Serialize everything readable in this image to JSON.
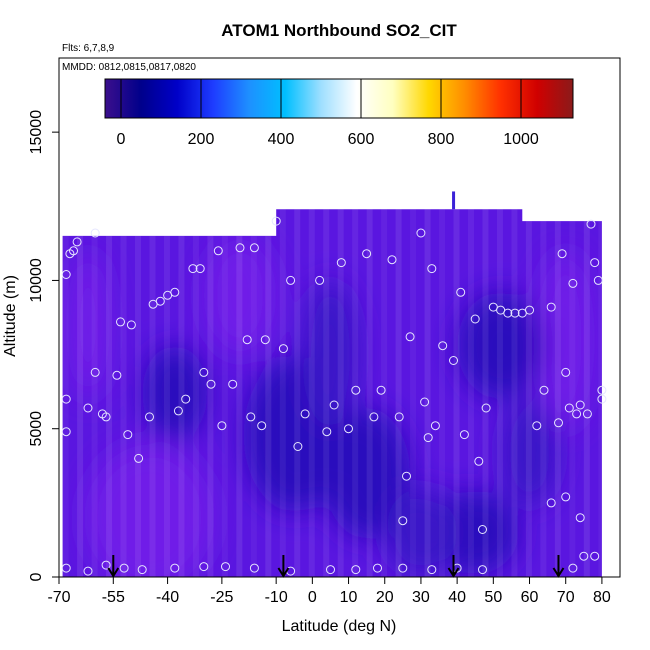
{
  "chart_data": {
    "type": "heatmap",
    "title": "ATOM1 Northbound SO2_CIT",
    "flights_label": "Flts: 6,7,8,9",
    "mmdd_label": "MMDD: 0812,0815,0817,0820",
    "xlabel": "Latitude (deg N)",
    "ylabel": "Altitude (m)",
    "xlim": [
      -70,
      85
    ],
    "ylim": [
      0,
      17500
    ],
    "x_ticks": [
      -70,
      -55,
      -40,
      -25,
      -10,
      0,
      10,
      20,
      30,
      40,
      50,
      60,
      70,
      80
    ],
    "y_ticks": [
      0,
      5000,
      10000,
      15000
    ],
    "colorbar": {
      "min": -40,
      "max": 1130,
      "ticks": [
        0,
        200,
        400,
        600,
        800,
        1000
      ],
      "colors": [
        "#3b0f8c",
        "#00008b",
        "#0000c8",
        "#1e3cff",
        "#1e90ff",
        "#00bfff",
        "#9fdfff",
        "#ffffff",
        "#ffffc0",
        "#ffd700",
        "#ff8c00",
        "#ff3000",
        "#d00000",
        "#8b1a1a"
      ]
    },
    "data_extent": {
      "lat_min": -69,
      "lat_max": 80,
      "alt_min": 0,
      "alt_max": 12400,
      "upper_block": {
        "lat_min": -10,
        "lat_max": 58,
        "alt_max": 12400
      },
      "left_top": 11500,
      "right_top": 12000
    },
    "field_colors": {
      "background": "#5a16e0",
      "lighter": "#6f1ee8",
      "darker": "#3a12c8",
      "darkest": "#2a0fbd"
    },
    "low_regions": [
      {
        "lat": -38,
        "alt": 6200,
        "rlat": 9,
        "ralt": 1600
      },
      {
        "lat": -5,
        "alt": 4800,
        "rlat": 14,
        "ralt": 2600
      },
      {
        "lat": 15,
        "alt": 3500,
        "rlat": 12,
        "ralt": 2200
      },
      {
        "lat": 52,
        "alt": 7800,
        "rlat": 12,
        "ralt": 1800
      },
      {
        "lat": 45,
        "alt": 1500,
        "rlat": 12,
        "ralt": 1400
      }
    ],
    "samples": [
      {
        "lat": -68,
        "alt": 300
      },
      {
        "lat": -62,
        "alt": 200
      },
      {
        "lat": -57,
        "alt": 400
      },
      {
        "lat": -52,
        "alt": 300
      },
      {
        "lat": -47,
        "alt": 250
      },
      {
        "lat": -38,
        "alt": 300
      },
      {
        "lat": -30,
        "alt": 350
      },
      {
        "lat": -24,
        "alt": 350
      },
      {
        "lat": -16,
        "alt": 300
      },
      {
        "lat": -6,
        "alt": 200
      },
      {
        "lat": 5,
        "alt": 250
      },
      {
        "lat": 12,
        "alt": 250
      },
      {
        "lat": 18,
        "alt": 300
      },
      {
        "lat": 25,
        "alt": 300
      },
      {
        "lat": 33,
        "alt": 250
      },
      {
        "lat": 40,
        "alt": 300
      },
      {
        "lat": 47,
        "alt": 250
      },
      {
        "lat": 72,
        "alt": 300
      },
      {
        "lat": 78,
        "alt": 700
      },
      {
        "lat": -68,
        "alt": 10200
      },
      {
        "lat": -67,
        "alt": 10900
      },
      {
        "lat": -66,
        "alt": 11000
      },
      {
        "lat": -65,
        "alt": 11300
      },
      {
        "lat": -60,
        "alt": 11600
      },
      {
        "lat": -68,
        "alt": 6000
      },
      {
        "lat": -68,
        "alt": 4900
      },
      {
        "lat": -62,
        "alt": 5700
      },
      {
        "lat": -60,
        "alt": 6900
      },
      {
        "lat": -58,
        "alt": 5500
      },
      {
        "lat": -57,
        "alt": 5400
      },
      {
        "lat": -54,
        "alt": 6800
      },
      {
        "lat": -53,
        "alt": 8600
      },
      {
        "lat": -51,
        "alt": 4800
      },
      {
        "lat": -50,
        "alt": 8500
      },
      {
        "lat": -48,
        "alt": 4000
      },
      {
        "lat": -45,
        "alt": 5400
      },
      {
        "lat": -44,
        "alt": 9200
      },
      {
        "lat": -42,
        "alt": 9300
      },
      {
        "lat": -40,
        "alt": 9500
      },
      {
        "lat": -38,
        "alt": 9600
      },
      {
        "lat": -37,
        "alt": 5600
      },
      {
        "lat": -35,
        "alt": 6000
      },
      {
        "lat": -33,
        "alt": 10400
      },
      {
        "lat": -31,
        "alt": 10400
      },
      {
        "lat": -30,
        "alt": 6900
      },
      {
        "lat": -28,
        "alt": 6500
      },
      {
        "lat": -25,
        "alt": 5100
      },
      {
        "lat": -26,
        "alt": 11000
      },
      {
        "lat": -22,
        "alt": 6500
      },
      {
        "lat": -20,
        "alt": 11100
      },
      {
        "lat": -18,
        "alt": 8000
      },
      {
        "lat": -17,
        "alt": 5400
      },
      {
        "lat": -16,
        "alt": 11100
      },
      {
        "lat": -14,
        "alt": 5100
      },
      {
        "lat": -13,
        "alt": 8000
      },
      {
        "lat": -10,
        "alt": 12000
      },
      {
        "lat": -8,
        "alt": 7700
      },
      {
        "lat": -6,
        "alt": 10000
      },
      {
        "lat": -4,
        "alt": 4400
      },
      {
        "lat": -2,
        "alt": 5500
      },
      {
        "lat": 2,
        "alt": 10000
      },
      {
        "lat": 4,
        "alt": 4900
      },
      {
        "lat": 6,
        "alt": 5800
      },
      {
        "lat": 8,
        "alt": 10600
      },
      {
        "lat": 10,
        "alt": 5000
      },
      {
        "lat": 12,
        "alt": 6300
      },
      {
        "lat": 15,
        "alt": 10900
      },
      {
        "lat": 17,
        "alt": 5400
      },
      {
        "lat": 19,
        "alt": 6300
      },
      {
        "lat": 22,
        "alt": 10700
      },
      {
        "lat": 24,
        "alt": 5400
      },
      {
        "lat": 26,
        "alt": 3400
      },
      {
        "lat": 25,
        "alt": 1900
      },
      {
        "lat": 27,
        "alt": 8100
      },
      {
        "lat": 30,
        "alt": 11600
      },
      {
        "lat": 31,
        "alt": 5900
      },
      {
        "lat": 32,
        "alt": 4700
      },
      {
        "lat": 33,
        "alt": 10400
      },
      {
        "lat": 34,
        "alt": 5100
      },
      {
        "lat": 36,
        "alt": 7800
      },
      {
        "lat": 39,
        "alt": 7300
      },
      {
        "lat": 41,
        "alt": 9600
      },
      {
        "lat": 42,
        "alt": 4800
      },
      {
        "lat": 45,
        "alt": 8700
      },
      {
        "lat": 46,
        "alt": 3900
      },
      {
        "lat": 47,
        "alt": 1600
      },
      {
        "lat": 48,
        "alt": 5700
      },
      {
        "lat": 50,
        "alt": 9100
      },
      {
        "lat": 52,
        "alt": 9000
      },
      {
        "lat": 54,
        "alt": 8900
      },
      {
        "lat": 56,
        "alt": 8900
      },
      {
        "lat": 58,
        "alt": 8900
      },
      {
        "lat": 60,
        "alt": 9000
      },
      {
        "lat": 62,
        "alt": 5100
      },
      {
        "lat": 64,
        "alt": 6300
      },
      {
        "lat": 66,
        "alt": 9100
      },
      {
        "lat": 66,
        "alt": 2500
      },
      {
        "lat": 68,
        "alt": 5200
      },
      {
        "lat": 69,
        "alt": 10900
      },
      {
        "lat": 70,
        "alt": 6900
      },
      {
        "lat": 70,
        "alt": 2700
      },
      {
        "lat": 71,
        "alt": 5700
      },
      {
        "lat": 72,
        "alt": 9900
      },
      {
        "lat": 73,
        "alt": 5500
      },
      {
        "lat": 74,
        "alt": 5800
      },
      {
        "lat": 74,
        "alt": 2000
      },
      {
        "lat": 75,
        "alt": 700
      },
      {
        "lat": 76,
        "alt": 5500
      },
      {
        "lat": 77,
        "alt": 11900
      },
      {
        "lat": 78,
        "alt": 10600
      },
      {
        "lat": 79,
        "alt": 10000
      },
      {
        "lat": 80,
        "alt": 6300
      },
      {
        "lat": 80,
        "alt": 6000
      }
    ],
    "arrows_lat": [
      -55,
      -8,
      39,
      68
    ]
  }
}
